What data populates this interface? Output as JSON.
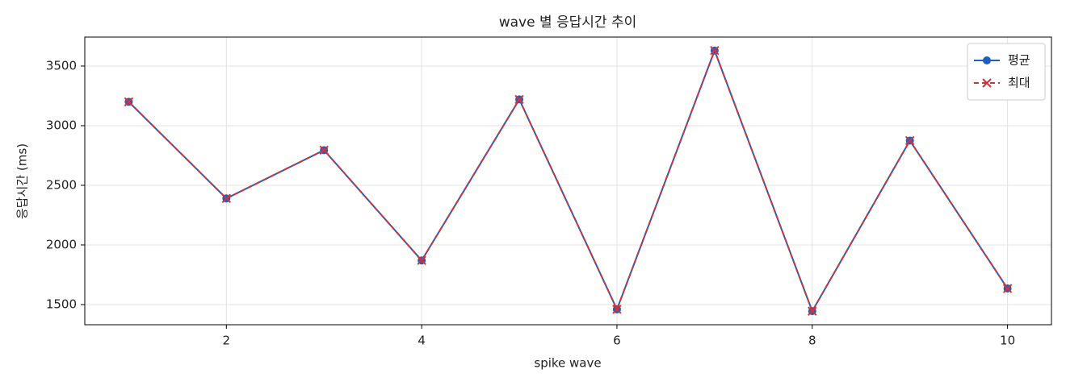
{
  "chart_data": {
    "type": "line",
    "title": "wave 별 응답시간 추이",
    "x_label": "spike wave",
    "y_label": "응답시간 (ms)",
    "x": [
      1,
      2,
      3,
      4,
      5,
      6,
      7,
      8,
      9,
      10
    ],
    "series": [
      {
        "name": "평균",
        "color": "#1f5fbf",
        "line_style": "solid",
        "marker": "circle",
        "values": [
          3200,
          2390,
          2795,
          1870,
          3220,
          1460,
          3630,
          1445,
          2875,
          1635
        ]
      },
      {
        "name": "최대",
        "color": "#d0343a",
        "line_style": "dashed",
        "marker": "x",
        "values": [
          3200,
          2390,
          2795,
          1870,
          3220,
          1460,
          3630,
          1445,
          2875,
          1635
        ]
      }
    ],
    "xlim": [
      0.55,
      10.45
    ],
    "xticks": [
      2,
      4,
      6,
      8,
      10
    ],
    "ylim": [
      1331,
      3743
    ],
    "yticks": [
      1500,
      2000,
      2500,
      3000,
      3500
    ],
    "grid": true,
    "legend": "upper-right"
  }
}
